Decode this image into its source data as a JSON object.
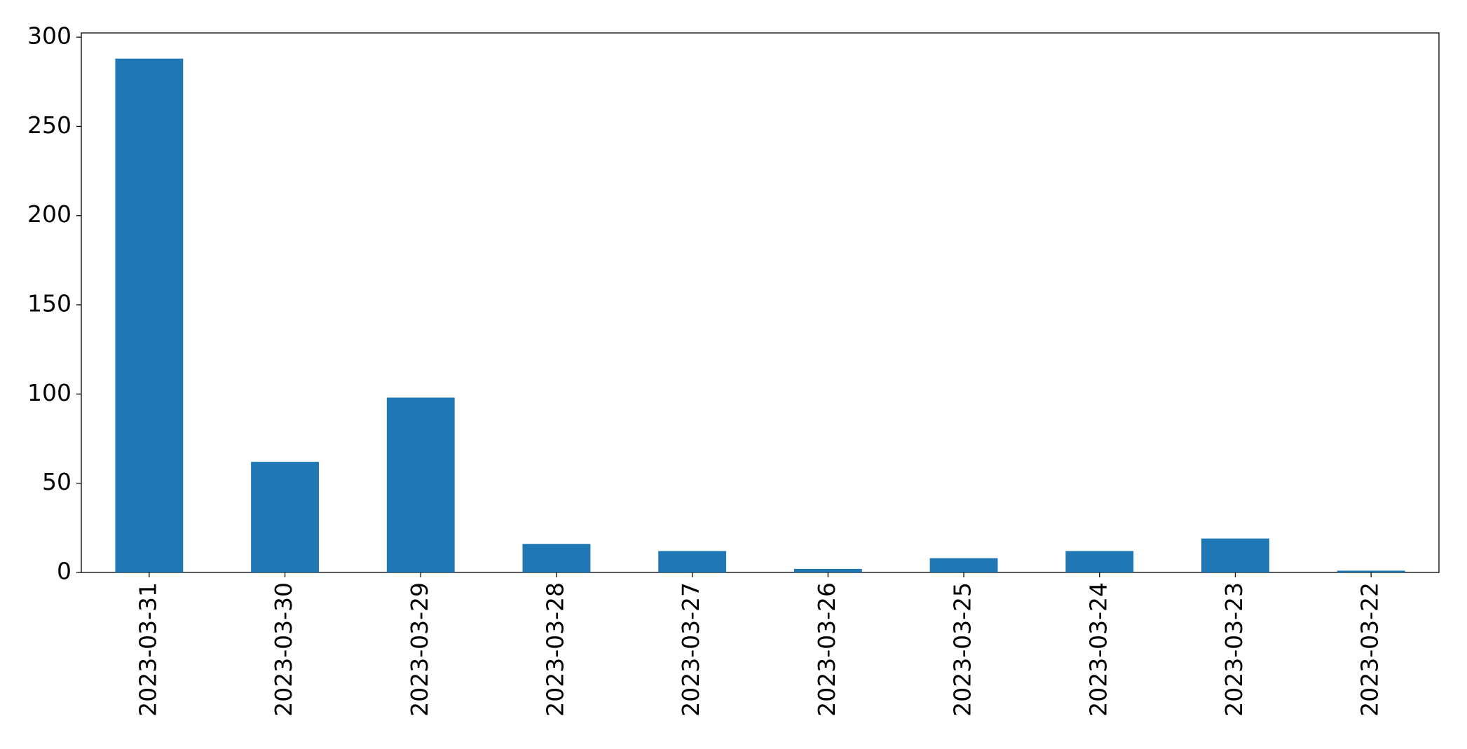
{
  "chart_data": {
    "type": "bar",
    "categories": [
      "2023-03-31",
      "2023-03-30",
      "2023-03-29",
      "2023-03-28",
      "2023-03-27",
      "2023-03-26",
      "2023-03-25",
      "2023-03-24",
      "2023-03-23",
      "2023-03-22"
    ],
    "values": [
      288,
      62,
      98,
      16,
      12,
      2,
      8,
      12,
      19,
      1
    ],
    "color": "#1f77b4",
    "ylim": [
      0,
      302.4
    ],
    "yticks": [
      0,
      50,
      100,
      150,
      200,
      250,
      300
    ],
    "grid": false
  }
}
